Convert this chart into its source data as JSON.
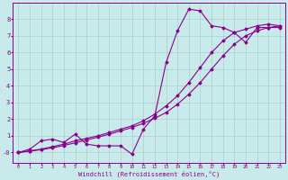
{
  "title": "",
  "xlabel": "Windchill (Refroidissement éolien,°C)",
  "ylabel": "",
  "bg_color": "#c8eaea",
  "line_color": "#8b008b",
  "grid_color": "#aacccc",
  "xlim": [
    -0.5,
    23.5
  ],
  "ylim": [
    -0.6,
    9.0
  ],
  "xticks": [
    0,
    1,
    2,
    3,
    4,
    5,
    6,
    7,
    8,
    9,
    10,
    11,
    12,
    13,
    14,
    15,
    16,
    17,
    18,
    19,
    20,
    21,
    22,
    23
  ],
  "yticks": [
    0,
    1,
    2,
    3,
    4,
    5,
    6,
    7,
    8
  ],
  "ytick_labels": [
    "-0",
    "1",
    "2",
    "3",
    "4",
    "5",
    "6",
    "7",
    "8"
  ],
  "line1_x": [
    0,
    1,
    2,
    3,
    4,
    5,
    6,
    7,
    8,
    9,
    10,
    11,
    12,
    13,
    14,
    15,
    16,
    17,
    18,
    19,
    20,
    21,
    22,
    23
  ],
  "line1_y": [
    0.0,
    0.2,
    0.7,
    0.8,
    0.6,
    1.1,
    0.5,
    0.4,
    0.4,
    0.4,
    -0.1,
    1.4,
    2.2,
    5.4,
    7.3,
    8.6,
    8.5,
    7.6,
    7.5,
    7.2,
    6.6,
    7.5,
    7.5,
    7.5
  ],
  "line2_x": [
    0,
    1,
    2,
    3,
    4,
    5,
    6,
    7,
    8,
    9,
    10,
    11,
    12,
    13,
    14,
    15,
    16,
    17,
    18,
    19,
    20,
    21,
    22,
    23
  ],
  "line2_y": [
    0.0,
    0.1,
    0.2,
    0.35,
    0.5,
    0.7,
    0.85,
    1.0,
    1.2,
    1.4,
    1.6,
    1.9,
    2.3,
    2.8,
    3.4,
    4.2,
    5.1,
    6.0,
    6.7,
    7.2,
    7.4,
    7.6,
    7.7,
    7.6
  ],
  "line3_x": [
    0,
    1,
    2,
    3,
    4,
    5,
    6,
    7,
    8,
    9,
    10,
    11,
    12,
    13,
    14,
    15,
    16,
    17,
    18,
    19,
    20,
    21,
    22,
    23
  ],
  "line3_y": [
    0.0,
    0.08,
    0.17,
    0.28,
    0.42,
    0.58,
    0.75,
    0.92,
    1.1,
    1.3,
    1.5,
    1.75,
    2.05,
    2.4,
    2.9,
    3.5,
    4.2,
    5.0,
    5.8,
    6.5,
    7.0,
    7.3,
    7.5,
    7.6
  ]
}
